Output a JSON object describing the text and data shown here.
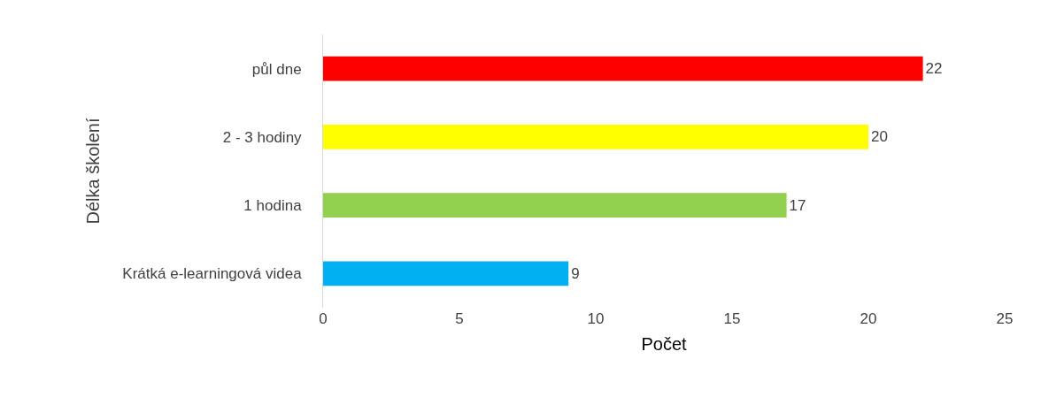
{
  "chart_data": {
    "type": "bar",
    "orientation": "horizontal",
    "xlabel": "Počet",
    "ylabel": "Délka školení",
    "categories": [
      "půl dne",
      "2 - 3 hodiny",
      "1 hodina",
      "Krátká e-learningová videa"
    ],
    "values": [
      22,
      20,
      17,
      9
    ],
    "colors": [
      "#ff0000",
      "#ffff00",
      "#92d050",
      "#00b0f0"
    ],
    "xlim": [
      0,
      25
    ],
    "xticks": [
      0,
      5,
      10,
      15,
      20,
      25
    ],
    "data_labels": true
  }
}
